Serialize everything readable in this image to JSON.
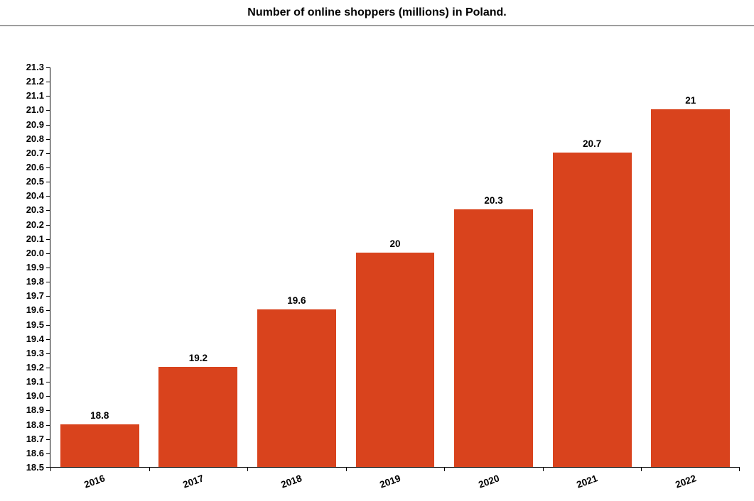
{
  "chart_data": {
    "type": "bar",
    "title": "Number of online shoppers (millions) in Poland.",
    "categories": [
      "2016",
      "2017",
      "2018",
      "2019",
      "2020",
      "2021",
      "2022"
    ],
    "values": [
      18.8,
      19.2,
      19.6,
      20,
      20.3,
      20.7,
      21
    ],
    "value_labels": [
      "18.8",
      "19.2",
      "19.6",
      "20",
      "20.3",
      "20.7",
      "21"
    ],
    "xlabel": "",
    "ylabel": "",
    "ylim": [
      18.5,
      21.3
    ],
    "ytick_step": 0.1,
    "yticks": [
      "21.3",
      "21.2",
      "21.1",
      "21.0",
      "20.9",
      "20.8",
      "20.7",
      "20.6",
      "20.5",
      "20.4",
      "20.3",
      "20.2",
      "20.1",
      "20.0",
      "19.9",
      "19.8",
      "19.7",
      "19.6",
      "19.5",
      "19.4",
      "19.3",
      "19.2",
      "19.1",
      "19.0",
      "18.9",
      "18.8",
      "18.7",
      "18.6",
      "18.5"
    ],
    "grid": false,
    "legend": "none",
    "bar_color": "#d9431d",
    "axis_color": "#000000",
    "label_color": "#000000",
    "bar_width_fraction": 0.8
  }
}
